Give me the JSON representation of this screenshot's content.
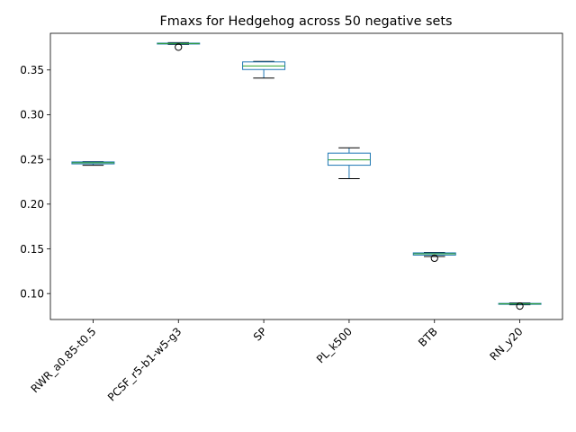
{
  "chart_data": {
    "type": "box",
    "title": "Fmaxs for Hedgehog across 50 negative sets",
    "xlabel": "",
    "ylabel": "",
    "ylim": [
      0.071,
      0.391
    ],
    "yticks": [
      0.1,
      0.15,
      0.2,
      0.25,
      0.3,
      0.35
    ],
    "ytick_labels": [
      "0.10",
      "0.15",
      "0.20",
      "0.25",
      "0.30",
      "0.35"
    ],
    "grid": false,
    "categories": [
      "RWR_a0.85-t0.5",
      "PCSF_r5-b1-w5-g3",
      "SP",
      "PL_k500",
      "BTB",
      "RN_y20"
    ],
    "boxes": [
      {
        "whislo": 0.2435,
        "q1": 0.245,
        "med": 0.2462,
        "q3": 0.2472,
        "whishi": 0.2475,
        "fliers": []
      },
      {
        "whislo": 0.3785,
        "q1": 0.379,
        "med": 0.3795,
        "q3": 0.38,
        "whishi": 0.3805,
        "fliers": [
          0.3755
        ]
      },
      {
        "whislo": 0.341,
        "q1": 0.3505,
        "med": 0.3545,
        "q3": 0.359,
        "whishi": 0.3595,
        "fliers": []
      },
      {
        "whislo": 0.2285,
        "q1": 0.2435,
        "med": 0.2495,
        "q3": 0.257,
        "whishi": 0.263,
        "fliers": []
      },
      {
        "whislo": 0.1415,
        "q1": 0.143,
        "med": 0.1445,
        "q3": 0.1455,
        "whishi": 0.146,
        "fliers": [
          0.1395
        ]
      },
      {
        "whislo": 0.0875,
        "q1": 0.088,
        "med": 0.0885,
        "q3": 0.089,
        "whishi": 0.0895,
        "fliers": [
          0.086
        ]
      }
    ],
    "colors": {
      "box": "#1f77b4",
      "median": "#2ca02c",
      "whisker": "#1f77b4",
      "cap": "#000000",
      "flier": "#000000"
    }
  }
}
